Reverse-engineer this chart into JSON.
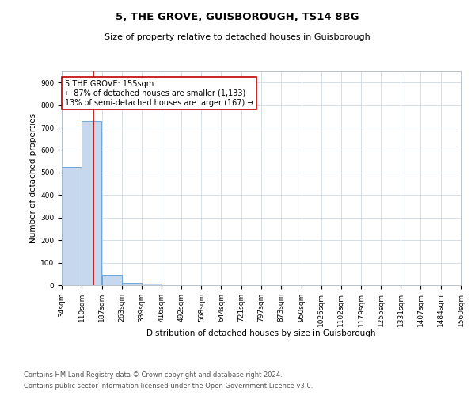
{
  "title": "5, THE GROVE, GUISBOROUGH, TS14 8BG",
  "subtitle": "Size of property relative to detached houses in Guisborough",
  "xlabel": "Distribution of detached houses by size in Guisborough",
  "ylabel": "Number of detached properties",
  "footnote1": "Contains HM Land Registry data © Crown copyright and database right 2024.",
  "footnote2": "Contains public sector information licensed under the Open Government Licence v3.0.",
  "annotation_title": "5 THE GROVE: 155sqm",
  "annotation_line1": "← 87% of detached houses are smaller (1,133)",
  "annotation_line2": "13% of semi-detached houses are larger (167) →",
  "property_size": 155,
  "bin_edges": [
    34,
    110,
    187,
    263,
    339,
    416,
    492,
    568,
    644,
    721,
    797,
    873,
    950,
    1026,
    1102,
    1179,
    1255,
    1331,
    1407,
    1484,
    1560
  ],
  "bin_values": [
    525,
    727,
    46,
    10,
    6,
    0,
    0,
    0,
    0,
    0,
    0,
    0,
    0,
    0,
    0,
    0,
    0,
    0,
    0,
    0
  ],
  "bar_color": "#c5d8ed",
  "bar_edge_color": "#5b9bd5",
  "line_color": "#c00000",
  "background_color": "#ffffff",
  "grid_color": "#d0d8e4",
  "ylim": [
    0,
    950
  ],
  "yticks": [
    0,
    100,
    200,
    300,
    400,
    500,
    600,
    700,
    800,
    900
  ],
  "title_fontsize": 9.5,
  "subtitle_fontsize": 8,
  "axis_label_fontsize": 7.5,
  "tick_fontsize": 6.5,
  "annotation_fontsize": 7,
  "footnote_fontsize": 6
}
